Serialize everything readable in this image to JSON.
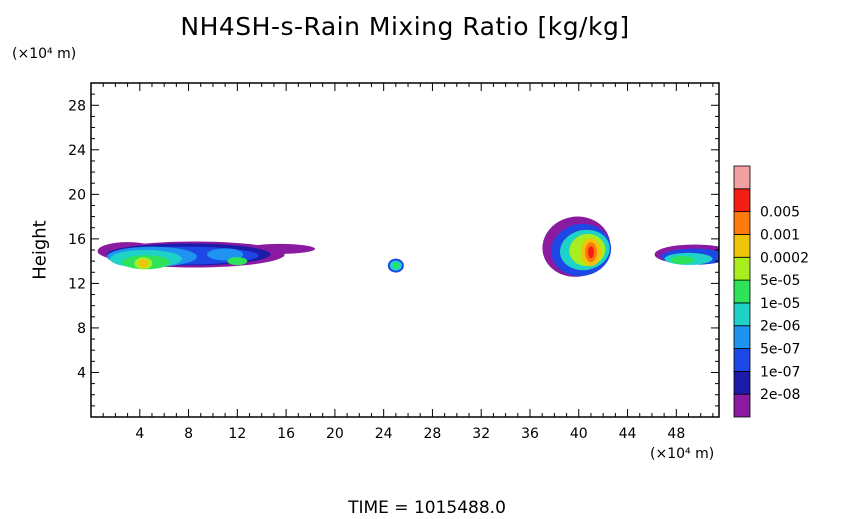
{
  "chart_data": {
    "type": "heatmap",
    "title": "NH4SH-s-Rain Mixing Ratio [kg/kg]",
    "ylabel": "Height",
    "xunit": "(×10⁴ m)",
    "yunit": "(×10⁴ m)",
    "xlim": [
      0,
      51.5
    ],
    "ylim": [
      0,
      30
    ],
    "xticks": [
      4,
      8,
      12,
      16,
      20,
      24,
      28,
      32,
      36,
      40,
      44,
      48
    ],
    "yticks": [
      4,
      8,
      12,
      16,
      20,
      24,
      28
    ],
    "colorbar": {
      "levels": [
        "2e-08",
        "1e-07",
        "5e-07",
        "2e-06",
        "1e-05",
        "5e-05",
        "0.0002",
        "0.001",
        "0.005"
      ],
      "colors": [
        "#8a1aa0",
        "#1c1ca8",
        "#1e48e6",
        "#1e94f0",
        "#1ed2c8",
        "#2ee25a",
        "#a8ee1e",
        "#f0c40a",
        "#ff7a0a",
        "#f51e14",
        "#f4a0a0"
      ]
    },
    "features": [
      {
        "name": "west band",
        "x_range": [
          0,
          17.5
        ],
        "height_range": [
          12.8,
          15.8
        ],
        "peak_x": 4.5,
        "peak_height": 13.8,
        "peak_level": "5e-05"
      },
      {
        "name": "central cell",
        "x_range": [
          24.4,
          25.6
        ],
        "height_range": [
          13.1,
          14.1
        ],
        "peak_x": 25,
        "peak_height": 13.6,
        "peak_level": "1e-05"
      },
      {
        "name": "east core",
        "x_range": [
          37,
          42.5
        ],
        "height_range": [
          12.6,
          17.8
        ],
        "peak_x": 41,
        "peak_height": 14.8,
        "peak_level": "0.001"
      },
      {
        "name": "east edge band",
        "x_range": [
          46,
          51.5
        ],
        "height_range": [
          13.5,
          15.9
        ],
        "peak_x": 48.5,
        "peak_height": 14,
        "peak_level": "1e-05"
      }
    ]
  },
  "footer": {
    "label": "TIME",
    "value": "1015488.0"
  }
}
